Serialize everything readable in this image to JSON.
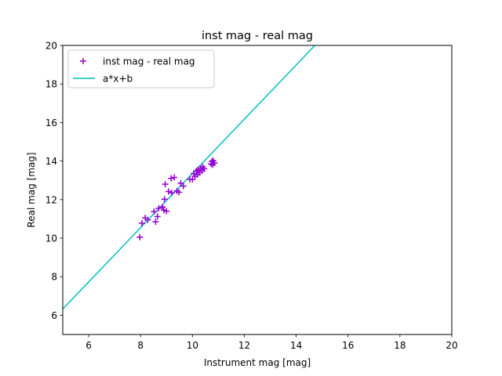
{
  "chart_data": {
    "type": "scatter",
    "title": "inst mag - real mag",
    "xlabel": "Instrument mag [mag]",
    "ylabel": "Real mag [mag]",
    "xlim": [
      5,
      20
    ],
    "ylim": [
      5,
      20
    ],
    "xticks": [
      "6",
      "8",
      "10",
      "12",
      "14",
      "16",
      "18",
      "20"
    ],
    "yticks": [
      "6",
      "8",
      "10",
      "12",
      "14",
      "16",
      "18",
      "20"
    ],
    "grid": false,
    "legend_position": "top-left",
    "series": [
      {
        "name": "inst mag - real mag",
        "kind": "scatter",
        "marker": "plus",
        "color": "#9400D3",
        "points": [
          [
            7.97,
            10.05
          ],
          [
            8.05,
            10.78
          ],
          [
            8.18,
            11.05
          ],
          [
            8.28,
            10.95
          ],
          [
            8.52,
            11.38
          ],
          [
            8.58,
            10.85
          ],
          [
            8.65,
            11.12
          ],
          [
            8.7,
            11.55
          ],
          [
            8.85,
            11.62
          ],
          [
            8.9,
            11.45
          ],
          [
            8.95,
            12.8
          ],
          [
            8.92,
            12.02
          ],
          [
            9.0,
            11.4
          ],
          [
            9.08,
            12.42
          ],
          [
            9.2,
            12.35
          ],
          [
            9.18,
            13.1
          ],
          [
            9.3,
            13.15
          ],
          [
            9.4,
            12.45
          ],
          [
            9.48,
            12.38
          ],
          [
            9.55,
            12.85
          ],
          [
            9.65,
            12.7
          ],
          [
            9.9,
            13.05
          ],
          [
            10.0,
            13.05
          ],
          [
            10.05,
            13.35
          ],
          [
            10.1,
            13.2
          ],
          [
            10.15,
            13.48
          ],
          [
            10.2,
            13.3
          ],
          [
            10.22,
            13.55
          ],
          [
            10.28,
            13.4
          ],
          [
            10.32,
            13.62
          ],
          [
            10.38,
            13.5
          ],
          [
            10.4,
            13.7
          ],
          [
            10.45,
            13.6
          ],
          [
            10.72,
            13.85
          ],
          [
            10.75,
            13.98
          ],
          [
            10.78,
            13.8
          ],
          [
            10.8,
            14.02
          ],
          [
            10.85,
            13.9
          ]
        ]
      },
      {
        "name": "a*x+b",
        "kind": "line",
        "color": "#00BFBF",
        "x": [
          5,
          14.72
        ],
        "y": [
          6.32,
          20
        ]
      }
    ]
  }
}
